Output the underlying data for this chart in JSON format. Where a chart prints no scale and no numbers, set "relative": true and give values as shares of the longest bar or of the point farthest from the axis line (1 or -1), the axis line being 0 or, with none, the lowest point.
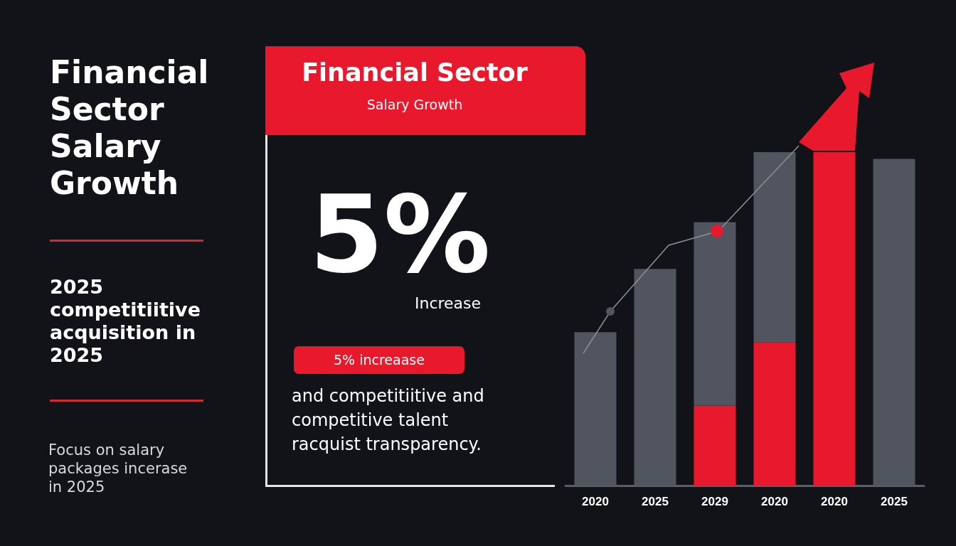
{
  "chart_data": {
    "type": "bar",
    "title": "Financial Sector Salary Growth",
    "subtitle": "2025 competitiitive acquisition in 2025",
    "annotations": [
      "Focus on salary packages incerase in 2025",
      "Financial Sector",
      "Salary Growth",
      "5%",
      "Increase",
      "5% increaase",
      "and competitiitive and competitive talent racquist transparency."
    ],
    "categories": [
      "2020",
      "2025",
      "2029",
      "2020",
      "2020",
      "2025"
    ],
    "stacked": true,
    "relative": true,
    "series": [
      {
        "color": "#e8192c",
        "values": [
          null,
          null,
          0.24,
          0.43,
          1.0,
          null
        ]
      },
      {
        "color": "#50555f",
        "values": [
          0.46,
          0.65,
          0.55,
          0.57,
          null,
          0.98
        ]
      }
    ]
  }
}
